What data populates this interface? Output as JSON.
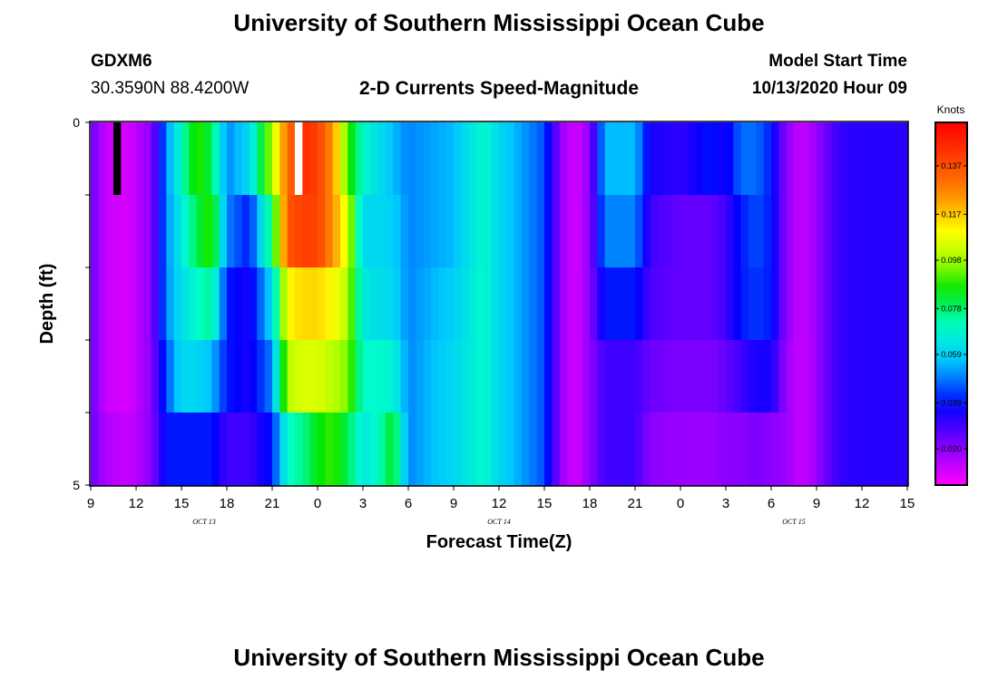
{
  "header": {
    "title": "University of Southern Mississippi Ocean Cube",
    "station_id": "GDXM6",
    "coords": "30.3590N 88.4200W",
    "subtitle": "2-D Currents Speed-Magnitude",
    "model_label": "Model Start Time",
    "model_time": "10/13/2020 Hour 09"
  },
  "footer": {
    "title": "University of Southern Mississippi Ocean Cube"
  },
  "colors": {
    "scale_low": "#ff00ff",
    "scale_high": "#ff0000",
    "missing_white": "#ffffff",
    "missing_black": "#000000"
  },
  "chart_data": {
    "type": "heatmap",
    "title": "2-D Currents Speed-Magnitude",
    "xlabel": "Forecast Time(Z)",
    "ylabel": "Depth (ft)",
    "x_start_hour": 9,
    "x_step_hours": 0.5,
    "x_tick_labels": [
      "9",
      "12",
      "15",
      "18",
      "21",
      "0",
      "3",
      "6",
      "9",
      "12",
      "15",
      "18",
      "21",
      "0",
      "3",
      "6",
      "9",
      "12",
      "15"
    ],
    "date_labels": [
      {
        "text": "OCT 13",
        "hour": 16.5
      },
      {
        "text": "OCT 14",
        "hour": 36
      },
      {
        "text": "OCT 15",
        "hour": 55.5
      }
    ],
    "y_tick_labels": [
      "0",
      "5"
    ],
    "ylim": [
      0,
      5
    ],
    "depth_levels": 5,
    "colorbar": {
      "label": "Knots",
      "min": 0.005,
      "max": 0.155,
      "tick_labels": [
        "0.137",
        "0.117",
        "0.098",
        "0.078",
        "0.059",
        "0.039",
        "0.020"
      ],
      "tick_values": [
        0.137,
        0.117,
        0.098,
        0.078,
        0.059,
        0.039,
        0.02
      ]
    },
    "keyframes": [
      {
        "hour": 9,
        "values": [
          0.025,
          0.025,
          0.025,
          0.025,
          0.025
        ]
      },
      {
        "hour": 10,
        "values": [
          0.012,
          0.012,
          0.012,
          0.012,
          0.015
        ]
      },
      {
        "hour": 11.5,
        "values": [
          0.01,
          0.01,
          0.01,
          0.01,
          0.012
        ]
      },
      {
        "hour": 13,
        "values": [
          0.02,
          0.02,
          0.02,
          0.02,
          0.02
        ]
      },
      {
        "hour": 14,
        "values": [
          0.05,
          0.05,
          0.05,
          0.045,
          0.04
        ]
      },
      {
        "hour": 15,
        "values": [
          0.07,
          0.065,
          0.062,
          0.06,
          0.04
        ]
      },
      {
        "hour": 16,
        "values": [
          0.09,
          0.08,
          0.07,
          0.06,
          0.04
        ]
      },
      {
        "hour": 17,
        "values": [
          0.08,
          0.09,
          0.075,
          0.055,
          0.04
        ]
      },
      {
        "hour": 18,
        "values": [
          0.05,
          0.05,
          0.04,
          0.04,
          0.03
        ]
      },
      {
        "hour": 19.5,
        "values": [
          0.06,
          0.04,
          0.035,
          0.035,
          0.03
        ]
      },
      {
        "hour": 21,
        "values": [
          0.1,
          0.08,
          0.06,
          0.05,
          0.04
        ]
      },
      {
        "hour": 22,
        "values": [
          0.13,
          0.135,
          0.11,
          0.1,
          0.07
        ]
      },
      {
        "hour": 23,
        "values": [
          0.145,
          0.14,
          0.115,
          0.105,
          0.075
        ]
      },
      {
        "hour": 24,
        "values": [
          0.14,
          0.14,
          0.115,
          0.105,
          0.085
        ]
      },
      {
        "hour": 25,
        "values": [
          0.125,
          0.125,
          0.11,
          0.1,
          0.09
        ]
      },
      {
        "hour": 26,
        "values": [
          0.09,
          0.105,
          0.1,
          0.095,
          0.08
        ]
      },
      {
        "hour": 27,
        "values": [
          0.07,
          0.06,
          0.065,
          0.07,
          0.065
        ]
      },
      {
        "hour": 28,
        "values": [
          0.062,
          0.06,
          0.062,
          0.07,
          0.07
        ]
      },
      {
        "hour": 29,
        "values": [
          0.055,
          0.058,
          0.06,
          0.068,
          0.085
        ]
      },
      {
        "hour": 30,
        "values": [
          0.05,
          0.05,
          0.05,
          0.05,
          0.05
        ]
      },
      {
        "hour": 33,
        "values": [
          0.055,
          0.055,
          0.058,
          0.06,
          0.06
        ]
      },
      {
        "hour": 35,
        "values": [
          0.07,
          0.07,
          0.07,
          0.07,
          0.07
        ]
      },
      {
        "hour": 36,
        "values": [
          0.06,
          0.06,
          0.06,
          0.06,
          0.06
        ]
      },
      {
        "hour": 38,
        "values": [
          0.05,
          0.05,
          0.05,
          0.05,
          0.05
        ]
      },
      {
        "hour": 39,
        "values": [
          0.045,
          0.045,
          0.045,
          0.045,
          0.045
        ]
      },
      {
        "hour": 40,
        "values": [
          0.02,
          0.02,
          0.02,
          0.02,
          0.02
        ]
      },
      {
        "hour": 41,
        "values": [
          0.01,
          0.01,
          0.01,
          0.01,
          0.01
        ]
      },
      {
        "hour": 42,
        "values": [
          0.02,
          0.02,
          0.02,
          0.02,
          0.02
        ]
      },
      {
        "hour": 43,
        "values": [
          0.055,
          0.05,
          0.04,
          0.03,
          0.03
        ]
      },
      {
        "hour": 45,
        "values": [
          0.055,
          0.05,
          0.04,
          0.03,
          0.03
        ]
      },
      {
        "hour": 46,
        "values": [
          0.035,
          0.03,
          0.028,
          0.024,
          0.02
        ]
      },
      {
        "hour": 48,
        "values": [
          0.032,
          0.025,
          0.025,
          0.022,
          0.018
        ]
      },
      {
        "hour": 50,
        "values": [
          0.04,
          0.025,
          0.025,
          0.022,
          0.018
        ]
      },
      {
        "hour": 51,
        "values": [
          0.035,
          0.03,
          0.03,
          0.025,
          0.02
        ]
      },
      {
        "hour": 52,
        "values": [
          0.048,
          0.04,
          0.04,
          0.03,
          0.02
        ]
      },
      {
        "hour": 53,
        "values": [
          0.048,
          0.045,
          0.043,
          0.035,
          0.022
        ]
      },
      {
        "hour": 54,
        "values": [
          0.04,
          0.04,
          0.04,
          0.035,
          0.02
        ]
      },
      {
        "hour": 55,
        "values": [
          0.02,
          0.02,
          0.02,
          0.018,
          0.018
        ]
      },
      {
        "hour": 56,
        "values": [
          0.012,
          0.012,
          0.012,
          0.012,
          0.012
        ]
      },
      {
        "hour": 57,
        "values": [
          0.018,
          0.018,
          0.018,
          0.018,
          0.018
        ]
      },
      {
        "hour": 58,
        "values": [
          0.028,
          0.028,
          0.028,
          0.028,
          0.028
        ]
      },
      {
        "hour": 59,
        "values": [
          0.033,
          0.033,
          0.033,
          0.033,
          0.033
        ]
      }
    ],
    "missing_cells": [
      {
        "hour": 10.5,
        "depth_index": 0,
        "type": "black"
      },
      {
        "hour": 22.5,
        "depth_index": 0,
        "type": "white"
      }
    ]
  }
}
